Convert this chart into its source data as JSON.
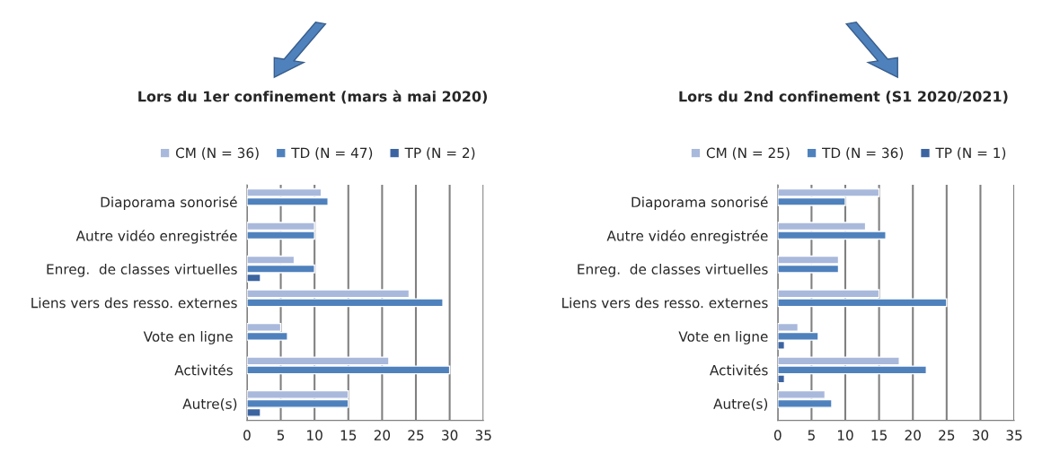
{
  "chart_data": [
    {
      "type": "bar",
      "orientation": "horizontal",
      "title": "Lors du 1er confinement (mars à mai 2020)",
      "categories": [
        "Diaporama sonorisé",
        "Autre vidéo enregistrée",
        "Enreg.  de classes virtuelles",
        "Liens vers des resso. externes",
        "Vote en ligne ",
        "Activités ",
        "Autre(s)"
      ],
      "series": [
        {
          "name": "CM (N = 36)",
          "color": "#a9b9dc",
          "values": [
            11,
            10,
            7,
            24,
            5,
            21,
            15
          ]
        },
        {
          "name": "TD (N = 47)",
          "color": "#4f81bd",
          "values": [
            12,
            10,
            10,
            29,
            6,
            30,
            15
          ]
        },
        {
          "name": "TP (N = 2)",
          "color": "#3c64a0",
          "values": [
            null,
            null,
            2,
            null,
            null,
            null,
            2
          ]
        }
      ],
      "xlim": [
        0,
        35
      ],
      "xticks": [
        0,
        5,
        10,
        15,
        20,
        25,
        30,
        35
      ],
      "grid": "x",
      "legend": "top"
    },
    {
      "type": "bar",
      "orientation": "horizontal",
      "title": "Lors du 2nd confinement (S1 2020/2021)",
      "categories": [
        "Diaporama sonorisé",
        "Autre vidéo enregistrée",
        "Enreg.  de classes virtuelles",
        "Liens vers des resso. externes",
        "Vote en ligne",
        "Activités",
        "Autre(s)"
      ],
      "series": [
        {
          "name": "CM (N = 25)",
          "color": "#a9b9dc",
          "values": [
            15,
            13,
            9,
            15,
            3,
            18,
            7
          ]
        },
        {
          "name": "TD (N = 36)",
          "color": "#4f81bd",
          "values": [
            10,
            16,
            9,
            25,
            6,
            22,
            8
          ]
        },
        {
          "name": "TP (N = 1)",
          "color": "#3c64a0",
          "values": [
            null,
            null,
            null,
            null,
            1,
            1,
            null
          ]
        }
      ],
      "xlim": [
        0,
        35
      ],
      "xticks": [
        0,
        5,
        10,
        15,
        20,
        25,
        30,
        35
      ],
      "grid": "x",
      "legend": "top"
    }
  ]
}
